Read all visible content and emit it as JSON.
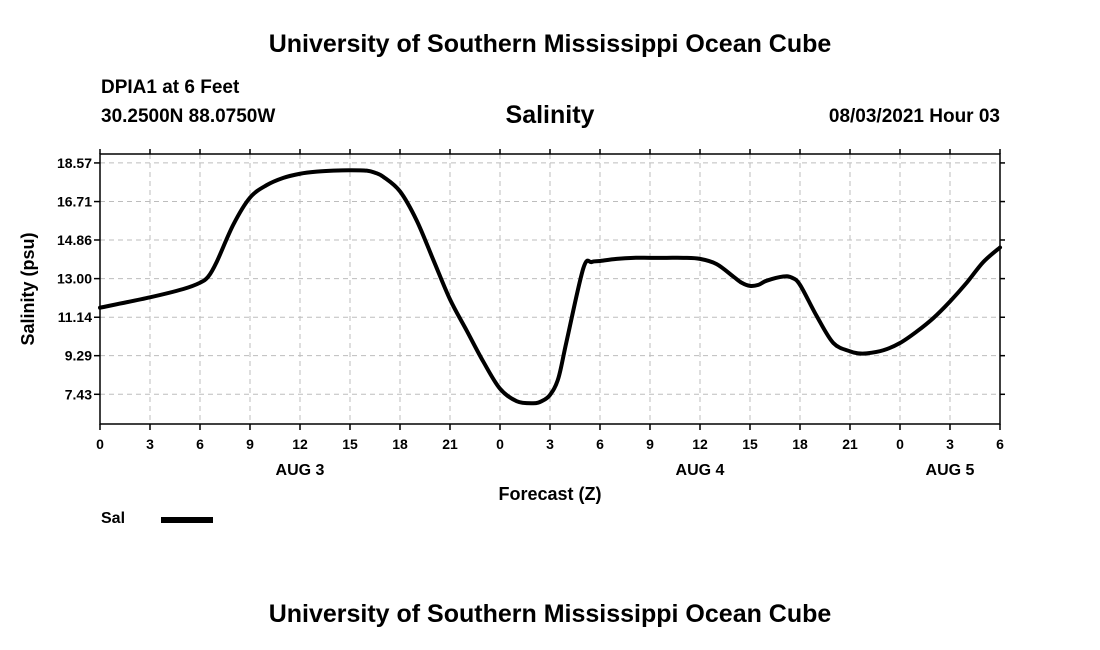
{
  "header": {
    "title": "University of Southern Mississippi Ocean Cube",
    "station": "DPIA1 at 6 Feet",
    "coordinates": "30.2500N  88.0750W",
    "chart_title": "Salinity",
    "datetime": "08/03/2021 Hour 03"
  },
  "footer": {
    "title": "University of Southern Mississippi Ocean Cube"
  },
  "legend": {
    "label": "Sal"
  },
  "chart_data": {
    "type": "line",
    "title": "Salinity",
    "xlabel": "Forecast (Z)",
    "ylabel": "Salinity (psu)",
    "xlim": [
      0,
      54
    ],
    "ylim": [
      6.0,
      19.0
    ],
    "y_ticks": [
      7.43,
      9.29,
      11.14,
      13.0,
      14.86,
      16.71,
      18.57
    ],
    "y_tick_labels": [
      "7.43",
      "9.29",
      "11.14",
      "13.00",
      "14.86",
      "16.71",
      "18.57"
    ],
    "x_ticks": [
      0,
      3,
      6,
      9,
      12,
      15,
      18,
      21,
      24,
      27,
      30,
      33,
      36,
      39,
      42,
      45,
      48,
      51,
      54
    ],
    "x_tick_labels": [
      "0",
      "3",
      "6",
      "9",
      "12",
      "15",
      "18",
      "21",
      "0",
      "3",
      "6",
      "9",
      "12",
      "15",
      "18",
      "21",
      "0",
      "3",
      "6"
    ],
    "day_labels": [
      {
        "text": "AUG 3",
        "x": 12
      },
      {
        "text": "AUG 4",
        "x": 36
      },
      {
        "text": "AUG 5",
        "x": 51
      }
    ],
    "grid": true,
    "grid_style": "dashed",
    "legend_position": "bottom-left",
    "series": [
      {
        "name": "Sal",
        "color": "#000000",
        "x": [
          0,
          3,
          5,
          6,
          6.5,
          7,
          8,
          9,
          10,
          11,
          12,
          13,
          14,
          15,
          16,
          16.5,
          17,
          18,
          19,
          20,
          21,
          22,
          23,
          24,
          25,
          26,
          26.5,
          27,
          27.5,
          28,
          29,
          29.5,
          30,
          31,
          32,
          33,
          34,
          35,
          36,
          37,
          38,
          38.5,
          39,
          39.5,
          40,
          41,
          41.5,
          42,
          43,
          44,
          45,
          45.5,
          46,
          47,
          48,
          49,
          50,
          51,
          52,
          53,
          54
        ],
        "y": [
          11.6,
          12.1,
          12.5,
          12.8,
          13.1,
          13.8,
          15.6,
          16.9,
          17.5,
          17.85,
          18.05,
          18.15,
          18.2,
          18.22,
          18.2,
          18.1,
          17.9,
          17.2,
          15.8,
          13.9,
          12.0,
          10.5,
          9.0,
          7.7,
          7.1,
          7.0,
          7.1,
          7.4,
          8.2,
          10.0,
          13.5,
          13.8,
          13.85,
          13.95,
          14.0,
          14.0,
          14.0,
          14.0,
          13.95,
          13.7,
          13.1,
          12.8,
          12.65,
          12.7,
          12.9,
          13.1,
          13.05,
          12.7,
          11.2,
          9.9,
          9.5,
          9.4,
          9.4,
          9.55,
          9.9,
          10.45,
          11.1,
          11.9,
          12.8,
          13.8,
          14.5
        ]
      }
    ]
  }
}
